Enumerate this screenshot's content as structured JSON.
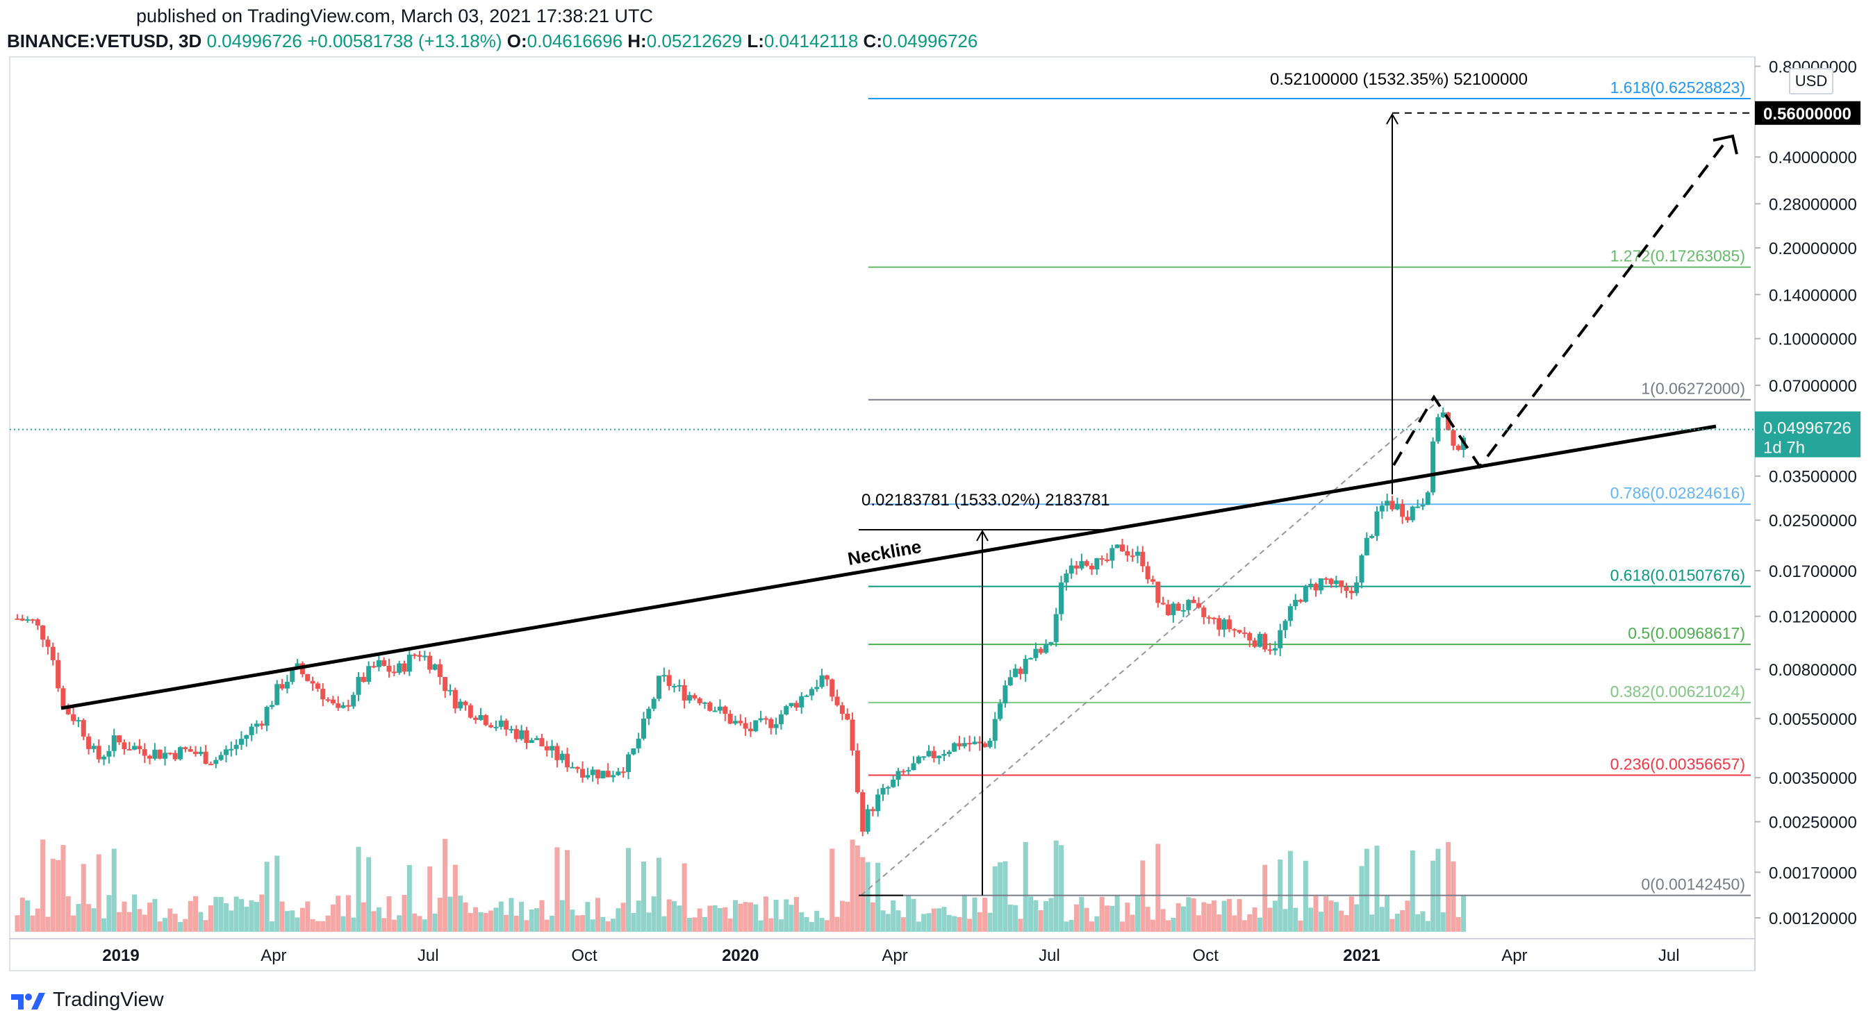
{
  "header": {
    "published": "published on TradingView.com, March 03, 2021 17:38:21 UTC",
    "symbol": "BINANCE:VETUSD, 3D",
    "last": "0.04996726",
    "change": "+0.00581738 (+13.18%)",
    "o_label": "O:",
    "open": "0.04616696",
    "h_label": "H:",
    "high": "0.05212629",
    "l_label": "L:",
    "low": "0.04142118",
    "c_label": "C:",
    "close": "0.04996726"
  },
  "brand": "TradingView",
  "currency": "USD",
  "colors": {
    "up": "#26a69a",
    "down": "#ef5350",
    "up_vol": "#8fd3ca",
    "down_vol": "#f5a7a5",
    "fib_blue": "#2196f3",
    "fib_green": "#4caf50",
    "fib_teal": "#089981",
    "fib_grey": "#787b86",
    "fib_red": "#f23645",
    "price_tag": "#26a69a"
  },
  "chart_data": {
    "type": "candlestick",
    "scale": "log",
    "x_ticks": [
      "2019",
      "Apr",
      "Jul",
      "Oct",
      "2020",
      "Apr",
      "Jul",
      "Oct",
      "2021",
      "Apr",
      "Jul"
    ],
    "x_tick_dates": [
      "2019-01-01",
      "2019-04-01",
      "2019-07-01",
      "2019-10-01",
      "2020-01-01",
      "2020-04-01",
      "2020-07-01",
      "2020-10-01",
      "2021-01-01",
      "2021-04-01",
      "2021-07-01"
    ],
    "y_ticks": [
      "0.80000000",
      "0.40000000",
      "0.28000000",
      "0.20000000",
      "0.14000000",
      "0.10000000",
      "0.07000000",
      "0.03500000",
      "0.02500000",
      "0.01700000",
      "0.01200000",
      "0.00800000",
      "0.00550000",
      "0.00350000",
      "0.00250000",
      "0.00170000",
      "0.00120000"
    ],
    "current_price": {
      "value": "0.04996726",
      "countdown": "1d 7h"
    },
    "target_tag": "0.56000000",
    "fib_levels": [
      {
        "label": "1.618(0.62528823)",
        "value": 0.62528823,
        "color": "#2196f3"
      },
      {
        "label": "1.272(0.17263085)",
        "value": 0.17263085,
        "color": "#66bb6a"
      },
      {
        "label": "1(0.06272000)",
        "value": 0.06272,
        "color": "#787b86"
      },
      {
        "label": "0.786(0.02824616)",
        "value": 0.02824616,
        "color": "#64b5f6"
      },
      {
        "label": "0.618(0.01507676)",
        "value": 0.01507676,
        "color": "#089981"
      },
      {
        "label": "0.5(0.00968617)",
        "value": 0.00968617,
        "color": "#4caf50"
      },
      {
        "label": "0.382(0.00621024)",
        "value": 0.00621024,
        "color": "#81c784"
      },
      {
        "label": "0.236(0.00356657)",
        "value": 0.00356657,
        "color": "#f23645"
      },
      {
        "label": "0(0.00142450)",
        "value": 0.0014245,
        "color": "#787b86"
      }
    ],
    "measure_upper": "0.52100000 (1532.35%) 52100000",
    "measure_lower": "0.02183781 (1533.02%) 2183781",
    "neckline_label": "Neckline",
    "price_path": [
      [
        "2018-11-01",
        0.0118
      ],
      [
        "2018-11-10",
        0.0115
      ],
      [
        "2018-11-20",
        0.0098
      ],
      [
        "2018-11-28",
        0.006
      ],
      [
        "2018-12-08",
        0.0053
      ],
      [
        "2018-12-18",
        0.004
      ],
      [
        "2018-12-28",
        0.0046
      ],
      [
        "2019-01-10",
        0.0044
      ],
      [
        "2019-01-25",
        0.0042
      ],
      [
        "2019-02-10",
        0.0043
      ],
      [
        "2019-02-25",
        0.004
      ],
      [
        "2019-03-10",
        0.0045
      ],
      [
        "2019-03-25",
        0.0055
      ],
      [
        "2019-04-05",
        0.0071
      ],
      [
        "2019-04-15",
        0.008
      ],
      [
        "2019-04-28",
        0.0069
      ],
      [
        "2019-05-10",
        0.0056
      ],
      [
        "2019-05-20",
        0.0071
      ],
      [
        "2019-06-01",
        0.0083
      ],
      [
        "2019-06-12",
        0.0078
      ],
      [
        "2019-06-25",
        0.0092
      ],
      [
        "2019-07-05",
        0.0082
      ],
      [
        "2019-07-15",
        0.0064
      ],
      [
        "2019-07-30",
        0.0057
      ],
      [
        "2019-08-15",
        0.0051
      ],
      [
        "2019-09-01",
        0.0047
      ],
      [
        "2019-09-15",
        0.0041
      ],
      [
        "2019-10-01",
        0.0037
      ],
      [
        "2019-10-15",
        0.0036
      ],
      [
        "2019-10-28",
        0.004
      ],
      [
        "2019-11-05",
        0.0052
      ],
      [
        "2019-11-15",
        0.0075
      ],
      [
        "2019-11-28",
        0.0067
      ],
      [
        "2019-12-10",
        0.0064
      ],
      [
        "2019-12-25",
        0.0055
      ],
      [
        "2020-01-05",
        0.005
      ],
      [
        "2020-01-20",
        0.0054
      ],
      [
        "2020-02-05",
        0.0064
      ],
      [
        "2020-02-18",
        0.0075
      ],
      [
        "2020-02-28",
        0.006
      ],
      [
        "2020-03-06",
        0.005
      ],
      [
        "2020-03-12",
        0.0024
      ],
      [
        "2020-03-20",
        0.0029
      ],
      [
        "2020-04-05",
        0.0036
      ],
      [
        "2020-04-25",
        0.0042
      ],
      [
        "2020-05-10",
        0.0046
      ],
      [
        "2020-05-25",
        0.0044
      ],
      [
        "2020-06-05",
        0.0071
      ],
      [
        "2020-06-20",
        0.0088
      ],
      [
        "2020-07-01",
        0.0094
      ],
      [
        "2020-07-10",
        0.017
      ],
      [
        "2020-07-20",
        0.019
      ],
      [
        "2020-08-01",
        0.0175
      ],
      [
        "2020-08-12",
        0.0205
      ],
      [
        "2020-08-25",
        0.0185
      ],
      [
        "2020-09-05",
        0.0125
      ],
      [
        "2020-09-20",
        0.013
      ],
      [
        "2020-10-01",
        0.0118
      ],
      [
        "2020-10-15",
        0.011
      ],
      [
        "2020-10-28",
        0.0102
      ],
      [
        "2020-11-10",
        0.0095
      ],
      [
        "2020-11-25",
        0.014
      ],
      [
        "2020-12-10",
        0.016
      ],
      [
        "2020-12-25",
        0.0138
      ],
      [
        "2021-01-05",
        0.022
      ],
      [
        "2021-01-15",
        0.029
      ],
      [
        "2021-01-28",
        0.0265
      ],
      [
        "2021-02-08",
        0.03
      ],
      [
        "2021-02-16",
        0.062
      ],
      [
        "2021-02-24",
        0.0418
      ],
      [
        "2021-03-03",
        0.05
      ]
    ]
  }
}
